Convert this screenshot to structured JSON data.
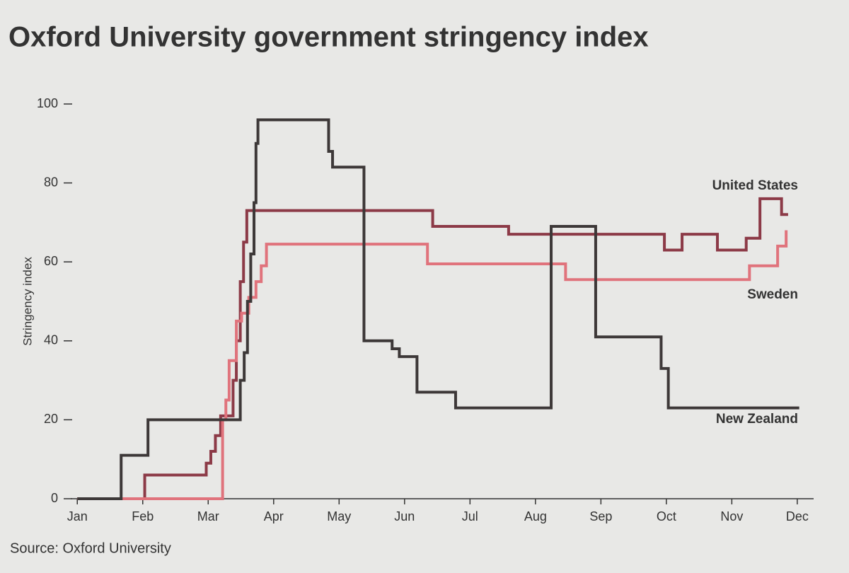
{
  "chart_data": {
    "type": "line",
    "step": true,
    "title": "Oxford University government stringency index",
    "y_label": "Stringency index",
    "source": "Source: Oxford University",
    "xlim": [
      -0.1,
      11.25
    ],
    "ylim": [
      0,
      100
    ],
    "yticks": [
      0,
      20,
      40,
      60,
      80,
      100
    ],
    "xticks": [
      {
        "value": 0,
        "label": "Jan"
      },
      {
        "value": 1,
        "label": "Feb"
      },
      {
        "value": 2,
        "label": "Mar"
      },
      {
        "value": 3,
        "label": "Apr"
      },
      {
        "value": 4,
        "label": "May"
      },
      {
        "value": 5,
        "label": "Jun"
      },
      {
        "value": 6,
        "label": "Jul"
      },
      {
        "value": 7,
        "label": "Aug"
      },
      {
        "value": 8,
        "label": "Sep"
      },
      {
        "value": 9,
        "label": "Oct"
      },
      {
        "value": 10,
        "label": "Nov"
      },
      {
        "value": 11,
        "label": "Dec"
      }
    ],
    "series": [
      {
        "name": "United States",
        "color": "#8c3a47",
        "x": [
          0,
          1.03,
          1.03,
          1.97,
          1.97,
          2.04,
          2.04,
          2.11,
          2.11,
          2.19,
          2.19,
          2.38,
          2.38,
          2.43,
          2.43,
          2.49,
          2.49,
          2.54,
          2.54,
          2.59,
          2.59,
          5.43,
          5.43,
          6.59,
          6.59,
          8.97,
          8.97,
          9.24,
          9.24,
          9.78,
          9.78,
          10.22,
          10.22,
          10.43,
          10.43,
          10.76,
          10.76,
          10.86
        ],
        "values": [
          0,
          0,
          6,
          6,
          9,
          9,
          12,
          12,
          16,
          16,
          21,
          21,
          30,
          30,
          40,
          40,
          55,
          55,
          65,
          65,
          73,
          73,
          69,
          69,
          67,
          67,
          63,
          63,
          67,
          67,
          63,
          63,
          66,
          66,
          76,
          76,
          72,
          72
        ]
      },
      {
        "name": "Sweden",
        "color": "#e0737c",
        "x": [
          0,
          2.22,
          2.22,
          2.27,
          2.27,
          2.32,
          2.32,
          2.43,
          2.43,
          2.51,
          2.51,
          2.62,
          2.62,
          2.73,
          2.73,
          2.81,
          2.81,
          2.89,
          2.89,
          5.35,
          5.35,
          7.46,
          7.46,
          10.27,
          10.27,
          10.7,
          10.7,
          10.83,
          10.83
        ],
        "values": [
          0,
          0,
          20,
          20,
          25,
          25,
          35,
          35,
          45,
          45,
          47,
          47,
          51,
          51,
          55,
          55,
          59,
          59,
          64.5,
          64.5,
          59.5,
          59.5,
          55.5,
          55.5,
          59,
          59,
          64,
          64,
          68
        ]
      },
      {
        "name": "New Zealand",
        "color": "#3d3838",
        "x": [
          0,
          0.67,
          0.67,
          1.08,
          1.08,
          2.49,
          2.49,
          2.55,
          2.55,
          2.6,
          2.6,
          2.65,
          2.65,
          2.7,
          2.7,
          2.73,
          2.73,
          2.76,
          2.76,
          3.84,
          3.84,
          3.9,
          3.9,
          4.38,
          4.38,
          4.81,
          4.81,
          4.92,
          4.92,
          5.19,
          5.19,
          5.78,
          5.78,
          7.24,
          7.24,
          7.92,
          7.92,
          8.92,
          8.92,
          9.03,
          9.03,
          11.03
        ],
        "values": [
          0,
          0,
          11,
          11,
          20,
          20,
          30,
          30,
          37,
          37,
          50,
          50,
          62,
          62,
          75,
          75,
          90,
          90,
          96,
          96,
          88,
          88,
          84,
          84,
          40,
          40,
          38,
          38,
          36,
          36,
          27,
          27,
          23,
          23,
          69,
          69,
          41,
          41,
          33,
          33,
          23,
          23
        ]
      }
    ]
  }
}
